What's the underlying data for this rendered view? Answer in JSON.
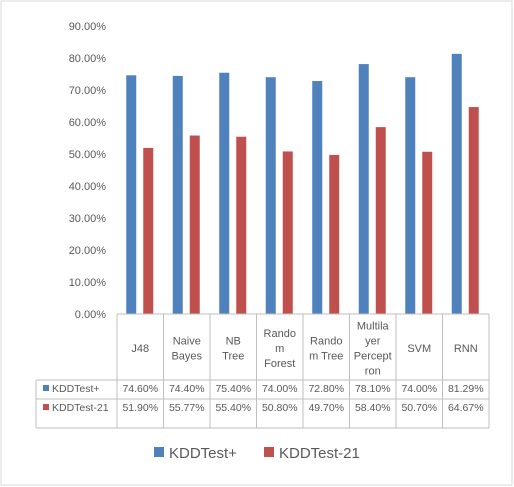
{
  "chart_data": {
    "type": "bar",
    "categories": [
      [
        "J48"
      ],
      [
        "Naive",
        "Bayes"
      ],
      [
        "NB",
        "Tree"
      ],
      [
        "Rando",
        "m",
        "Forest"
      ],
      [
        "Rando",
        "m Tree"
      ],
      [
        "Multila",
        "yer",
        "Percept",
        "ron"
      ],
      [
        "SVM"
      ],
      [
        "RNN"
      ]
    ],
    "series": [
      {
        "name": "KDDTest+",
        "color": "#4f81bd",
        "values": [
          74.6,
          74.4,
          75.4,
          74.0,
          72.8,
          78.1,
          74.0,
          81.29
        ],
        "labels": [
          "74.60%",
          "74.40%",
          "75.40%",
          "74.00%",
          "72.80%",
          "78.10%",
          "74.00%",
          "81.29%"
        ]
      },
      {
        "name": "KDDTest-21",
        "color": "#c0504d",
        "values": [
          51.9,
          55.77,
          55.4,
          50.8,
          49.7,
          58.4,
          50.7,
          64.67
        ],
        "labels": [
          "51.90%",
          "55.77%",
          "55.40%",
          "50.80%",
          "49.70%",
          "58.40%",
          "50.70%",
          "64.67%"
        ]
      }
    ],
    "y_ticks": [
      "0.00%",
      "10.00%",
      "20.00%",
      "30.00%",
      "40.00%",
      "50.00%",
      "60.00%",
      "70.00%",
      "80.00%",
      "90.00%"
    ],
    "ylim": [
      0,
      90
    ],
    "grid": false,
    "legend": "bottom",
    "data_table": true,
    "title": "",
    "xlabel": "",
    "ylabel": ""
  },
  "colors": {
    "axis": "#bfbfbf",
    "text": "#595959",
    "border": "#d9d9d9"
  }
}
